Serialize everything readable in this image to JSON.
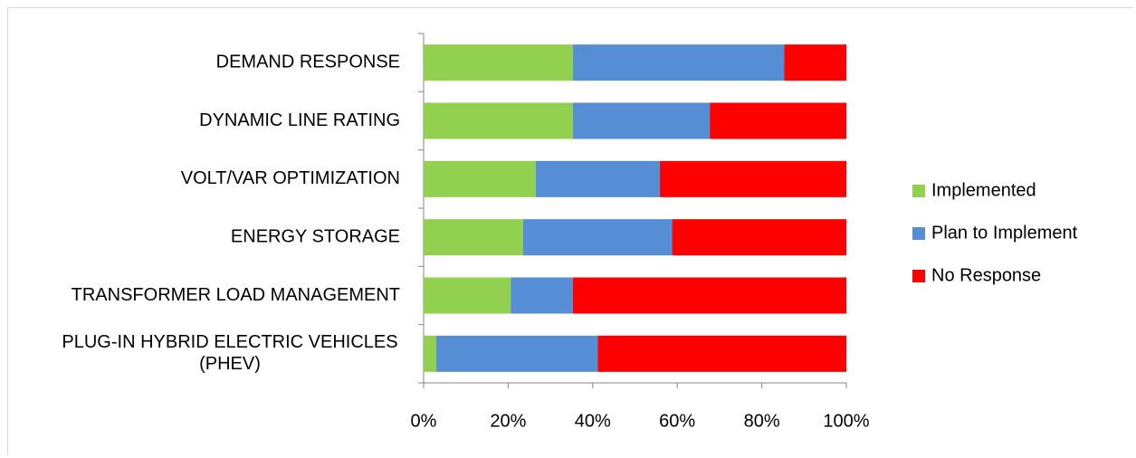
{
  "chart_data": {
    "type": "bar",
    "orientation": "horizontal",
    "stacked": "percent",
    "categories": [
      [
        "DEMAND RESPONSE"
      ],
      [
        "DYNAMIC LINE RATING"
      ],
      [
        "VOLT/VAR OPTIMIZATION"
      ],
      [
        "ENERGY STORAGE"
      ],
      [
        "TRANSFORMER LOAD MANAGEMENT"
      ],
      [
        "PLUG-IN HYBRID ELECTRIC VEHICLES",
        "(PHEV)"
      ]
    ],
    "series": [
      {
        "name": "Implemented",
        "color": "#92d050",
        "values": [
          35.3,
          35.3,
          26.5,
          23.5,
          20.6,
          3.0
        ]
      },
      {
        "name": "Plan to Implement",
        "color": "#558ed5",
        "values": [
          50.0,
          32.4,
          29.4,
          35.3,
          14.7,
          38.2
        ]
      },
      {
        "name": "No Response",
        "color": "#ff0000",
        "values": [
          14.7,
          32.3,
          44.1,
          41.2,
          64.7,
          58.8
        ]
      }
    ],
    "x_ticks": [
      "0%",
      "20%",
      "40%",
      "60%",
      "80%",
      "100%"
    ],
    "xlim": [
      0,
      100
    ],
    "grid": false,
    "legend_position": "right",
    "title": "",
    "xlabel": "",
    "ylabel": ""
  }
}
